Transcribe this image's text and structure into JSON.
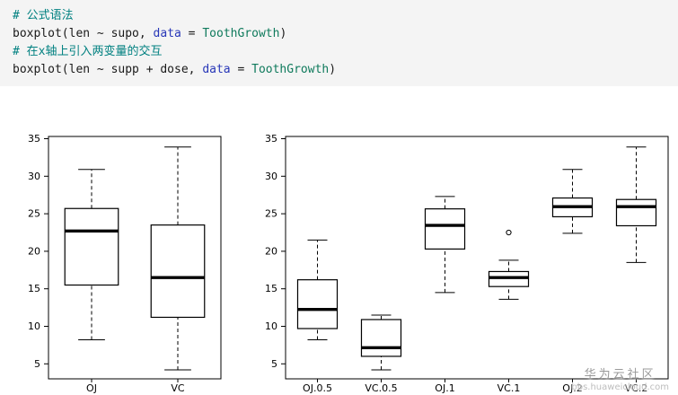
{
  "colors": {
    "code_background": "#f4f4f4",
    "code_plain": "#1a1a1a",
    "code_comment": "#008080",
    "code_keyword": "#2837b8",
    "code_identifier": "#0f7a5c",
    "axis": "#000000",
    "watermark_text": "#9a9a9a",
    "watermark_url": "#bdbdbd"
  },
  "code_block": {
    "lines": [
      {
        "segments": [
          {
            "type": "comment",
            "text": "# 公式语法"
          }
        ]
      },
      {
        "segments": [
          {
            "type": "plain",
            "text": "boxplot(len ~ supo, "
          },
          {
            "type": "keyword",
            "text": "data"
          },
          {
            "type": "plain",
            "text": " = "
          },
          {
            "type": "identifier",
            "text": "ToothGrowth"
          },
          {
            "type": "plain",
            "text": ")"
          }
        ]
      },
      {
        "segments": [
          {
            "type": "comment",
            "text": "# 在x轴上引入两变量的交互"
          }
        ]
      },
      {
        "segments": [
          {
            "type": "plain",
            "text": "boxplot(len ~ supp + dose, "
          },
          {
            "type": "keyword",
            "text": "data"
          },
          {
            "type": "plain",
            "text": " = "
          },
          {
            "type": "identifier",
            "text": "ToothGrowth"
          },
          {
            "type": "plain",
            "text": ")"
          }
        ]
      }
    ]
  },
  "chart_data": [
    {
      "type": "boxplot",
      "title": "",
      "xlabel": "",
      "ylabel": "",
      "categories": [
        "OJ",
        "VC"
      ],
      "stats": [
        {
          "min": 8.2,
          "q1": 15.5,
          "median": 22.7,
          "q3": 25.7,
          "max": 30.9,
          "outliers": []
        },
        {
          "min": 4.2,
          "q1": 11.2,
          "median": 16.5,
          "q3": 23.5,
          "max": 33.9,
          "outliers": []
        }
      ],
      "ylim": [
        3.0,
        35.3
      ],
      "yticks": [
        5,
        10,
        15,
        20,
        25,
        30,
        35
      ],
      "grid": false,
      "frame": true
    },
    {
      "type": "boxplot",
      "title": "",
      "xlabel": "",
      "ylabel": "",
      "categories": [
        "OJ.0.5",
        "VC.0.5",
        "OJ.1",
        "VC.1",
        "OJ.2",
        "VC.2"
      ],
      "stats": [
        {
          "min": 8.2,
          "q1": 9.7,
          "median": 12.25,
          "q3": 16.2,
          "max": 21.5,
          "outliers": []
        },
        {
          "min": 4.2,
          "q1": 6.0,
          "median": 7.15,
          "q3": 10.9,
          "max": 11.5,
          "outliers": []
        },
        {
          "min": 14.5,
          "q1": 20.3,
          "median": 23.45,
          "q3": 25.65,
          "max": 27.3,
          "outliers": []
        },
        {
          "min": 13.6,
          "q1": 15.3,
          "median": 16.5,
          "q3": 17.3,
          "max": 18.8,
          "outliers": [
            22.5
          ]
        },
        {
          "min": 22.4,
          "q1": 24.6,
          "median": 25.95,
          "q3": 27.1,
          "max": 30.9,
          "outliers": []
        },
        {
          "min": 18.5,
          "q1": 23.4,
          "median": 25.95,
          "q3": 26.9,
          "max": 33.9,
          "outliers": []
        }
      ],
      "ylim": [
        3.0,
        35.3
      ],
      "yticks": [
        5,
        10,
        15,
        20,
        25,
        30,
        35
      ],
      "grid": false,
      "frame": true
    }
  ],
  "watermark": {
    "title": "华为云社区",
    "url": "bbs.huaweicloud.com"
  }
}
